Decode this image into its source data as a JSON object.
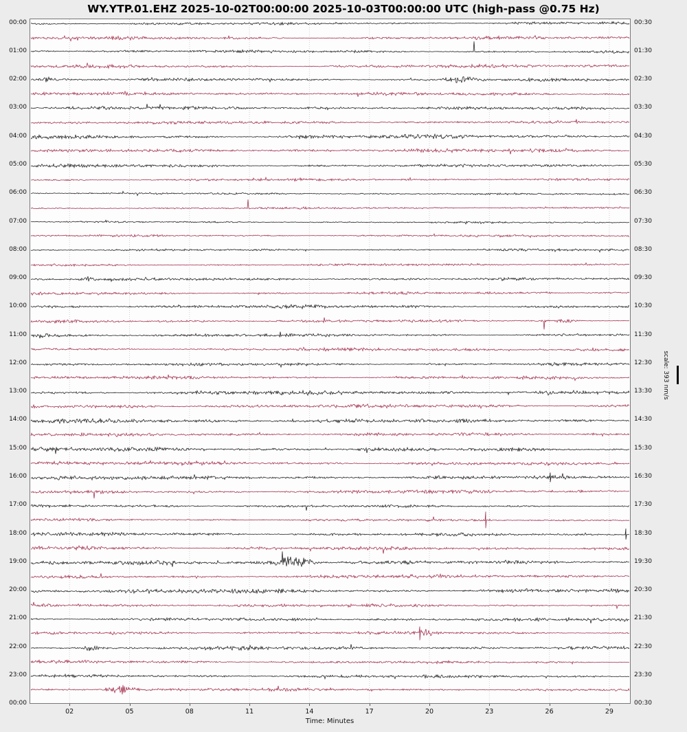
{
  "title": "WY.YTP.01.EHZ 2025-10-02T00:00:00 2025-10-03T00:00:00 UTC (high-pass @0.75 Hz)",
  "xlabel": "Time: Minutes",
  "scale_label": "scale: 393 nm/s",
  "chart_data": {
    "type": "line",
    "subtype": "helicorder-dayplot",
    "title": "WY.YTP.01.EHZ 2025-10-02T00:00:00 2025-10-03T00:00:00 UTC (high-pass @0.75 Hz)",
    "station": "WY.YTP.01.EHZ",
    "date_start": "2025-10-02T00:00:00",
    "date_end": "2025-10-03T00:00:00",
    "filter": "high-pass @0.75 Hz",
    "xlabel": "Time: Minutes",
    "x_range_minutes": [
      0,
      30
    ],
    "x_ticks": [
      "02",
      "05",
      "08",
      "11",
      "14",
      "17",
      "20",
      "23",
      "26",
      "29"
    ],
    "x_tick_minutes": [
      2,
      5,
      8,
      11,
      14,
      17,
      20,
      23,
      26,
      29
    ],
    "left_time_labels": [
      "00:00",
      "01:00",
      "02:00",
      "03:00",
      "04:00",
      "05:00",
      "06:00",
      "07:00",
      "08:00",
      "09:00",
      "10:00",
      "11:00",
      "12:00",
      "13:00",
      "14:00",
      "15:00",
      "16:00",
      "17:00",
      "18:00",
      "19:00",
      "20:00",
      "21:00",
      "22:00",
      "23:00",
      "00:00"
    ],
    "right_time_labels": [
      "00:30",
      "01:30",
      "02:30",
      "03:30",
      "04:30",
      "05:30",
      "06:30",
      "07:30",
      "08:30",
      "09:30",
      "10:30",
      "11:30",
      "12:30",
      "13:30",
      "14:30",
      "15:30",
      "16:30",
      "17:30",
      "18:30",
      "19:30",
      "20:30",
      "21:30",
      "22:30",
      "23:30",
      "00:30"
    ],
    "scale": {
      "label": "scale: 393 nm/s",
      "value": 393,
      "unit": "nm/s"
    },
    "grid": {
      "vertical_dashed": true,
      "color": "#cfcfcf"
    },
    "trace_colors": {
      "hour": "#1b1b1b",
      "half_hour": "#a12b49"
    },
    "rows": [
      {
        "start": "00:00",
        "end": "00:30",
        "color": "black",
        "amp": 2.2,
        "events": []
      },
      {
        "start": "00:30",
        "end": "01:00",
        "color": "red",
        "amp": 2.6,
        "events": []
      },
      {
        "start": "01:00",
        "end": "01:30",
        "color": "black",
        "amp": 2.2,
        "events": [
          {
            "kind": "spike-up",
            "min": 22.2,
            "amp": 15
          }
        ]
      },
      {
        "start": "01:30",
        "end": "02:00",
        "color": "red",
        "amp": 2.8,
        "events": []
      },
      {
        "start": "02:00",
        "end": "02:30",
        "color": "black",
        "amp": 2.5,
        "events": [
          {
            "kind": "burst",
            "min": 0.9,
            "dur": 0.5,
            "amp": 4
          },
          {
            "kind": "burst",
            "min": 21.6,
            "dur": 1.6,
            "amp": 6
          }
        ]
      },
      {
        "start": "02:30",
        "end": "03:00",
        "color": "red",
        "amp": 2.6,
        "events": []
      },
      {
        "start": "03:00",
        "end": "03:30",
        "color": "black",
        "amp": 2.6,
        "events": []
      },
      {
        "start": "03:30",
        "end": "04:00",
        "color": "red",
        "amp": 2.4,
        "events": []
      },
      {
        "start": "04:00",
        "end": "04:30",
        "color": "black",
        "amp": 3.4,
        "events": []
      },
      {
        "start": "04:30",
        "end": "05:00",
        "color": "red",
        "amp": 2.8,
        "events": []
      },
      {
        "start": "05:00",
        "end": "05:30",
        "color": "black",
        "amp": 2.6,
        "events": []
      },
      {
        "start": "05:30",
        "end": "06:00",
        "color": "red",
        "amp": 2.0,
        "events": []
      },
      {
        "start": "06:00",
        "end": "06:30",
        "color": "black",
        "amp": 1.5,
        "events": []
      },
      {
        "start": "06:30",
        "end": "07:00",
        "color": "red",
        "amp": 1.6,
        "events": [
          {
            "kind": "spike-up",
            "min": 10.9,
            "amp": 12
          }
        ]
      },
      {
        "start": "07:00",
        "end": "07:30",
        "color": "black",
        "amp": 1.3,
        "events": []
      },
      {
        "start": "07:30",
        "end": "08:00",
        "color": "red",
        "amp": 1.8,
        "events": []
      },
      {
        "start": "08:00",
        "end": "08:30",
        "color": "black",
        "amp": 1.8,
        "events": []
      },
      {
        "start": "08:30",
        "end": "09:00",
        "color": "red",
        "amp": 2.0,
        "events": []
      },
      {
        "start": "09:00",
        "end": "09:30",
        "color": "black",
        "amp": 2.1,
        "events": [
          {
            "kind": "burst",
            "min": 2.9,
            "dur": 0.6,
            "amp": 3.5
          }
        ]
      },
      {
        "start": "09:30",
        "end": "10:00",
        "color": "red",
        "amp": 2.2,
        "events": []
      },
      {
        "start": "10:00",
        "end": "10:30",
        "color": "black",
        "amp": 2.6,
        "events": []
      },
      {
        "start": "10:30",
        "end": "11:00",
        "color": "red",
        "amp": 2.2,
        "events": [
          {
            "kind": "spike-down",
            "min": 25.7,
            "amp": 12
          },
          {
            "kind": "burst",
            "min": 26.7,
            "dur": 1.0,
            "amp": 4.5
          }
        ]
      },
      {
        "start": "11:00",
        "end": "11:30",
        "color": "black",
        "amp": 2.6,
        "events": [
          {
            "kind": "burst",
            "min": 0.6,
            "dur": 0.4,
            "amp": 5
          }
        ]
      },
      {
        "start": "11:30",
        "end": "12:00",
        "color": "red",
        "amp": 2.5,
        "events": []
      },
      {
        "start": "12:00",
        "end": "12:30",
        "color": "black",
        "amp": 2.5,
        "events": []
      },
      {
        "start": "12:30",
        "end": "13:00",
        "color": "red",
        "amp": 2.5,
        "events": []
      },
      {
        "start": "13:00",
        "end": "13:30",
        "color": "black",
        "amp": 3.2,
        "events": []
      },
      {
        "start": "13:30",
        "end": "14:00",
        "color": "red",
        "amp": 2.8,
        "events": []
      },
      {
        "start": "14:00",
        "end": "14:30",
        "color": "black",
        "amp": 3.4,
        "events": []
      },
      {
        "start": "14:30",
        "end": "15:00",
        "color": "red",
        "amp": 2.8,
        "events": []
      },
      {
        "start": "15:00",
        "end": "15:30",
        "color": "black",
        "amp": 3.2,
        "events": []
      },
      {
        "start": "15:30",
        "end": "16:00",
        "color": "red",
        "amp": 3.0,
        "events": []
      },
      {
        "start": "16:00",
        "end": "16:30",
        "color": "black",
        "amp": 3.0,
        "events": [
          {
            "kind": "spike-both",
            "min": 26.0,
            "amp": 7
          }
        ]
      },
      {
        "start": "16:30",
        "end": "17:00",
        "color": "red",
        "amp": 2.8,
        "events": [
          {
            "kind": "spike-down",
            "min": 3.2,
            "amp": 10
          }
        ]
      },
      {
        "start": "17:00",
        "end": "17:30",
        "color": "black",
        "amp": 2.2,
        "events": [
          {
            "kind": "spike-down",
            "min": 13.8,
            "amp": 7
          }
        ]
      },
      {
        "start": "17:30",
        "end": "18:00",
        "color": "red",
        "amp": 2.2,
        "events": [
          {
            "kind": "spike-both",
            "min": 22.8,
            "amp": 12
          }
        ]
      },
      {
        "start": "18:00",
        "end": "18:30",
        "color": "black",
        "amp": 2.6,
        "events": [
          {
            "kind": "spike-both",
            "min": 29.8,
            "amp": 8
          }
        ]
      },
      {
        "start": "18:30",
        "end": "19:00",
        "color": "red",
        "amp": 2.8,
        "events": [
          {
            "kind": "burst",
            "min": 2.5,
            "dur": 2.0,
            "amp": 2
          }
        ]
      },
      {
        "start": "19:00",
        "end": "19:30",
        "color": "black",
        "amp": 3.0,
        "events": [
          {
            "kind": "spike-up",
            "min": 12.6,
            "amp": 16
          },
          {
            "kind": "burst",
            "min": 13.2,
            "dur": 1.8,
            "amp": 9
          },
          {
            "kind": "burst",
            "min": 17.5,
            "dur": 4.0,
            "amp": 1.5
          }
        ]
      },
      {
        "start": "19:30",
        "end": "20:00",
        "color": "red",
        "amp": 2.8,
        "events": []
      },
      {
        "start": "20:00",
        "end": "20:30",
        "color": "black",
        "amp": 3.5,
        "events": []
      },
      {
        "start": "20:30",
        "end": "21:00",
        "color": "red",
        "amp": 2.5,
        "events": []
      },
      {
        "start": "21:00",
        "end": "21:30",
        "color": "black",
        "amp": 2.5,
        "events": []
      },
      {
        "start": "21:30",
        "end": "22:00",
        "color": "red",
        "amp": 2.2,
        "events": [
          {
            "kind": "spike-both",
            "min": 19.5,
            "amp": 10
          },
          {
            "kind": "burst",
            "min": 19.9,
            "dur": 0.8,
            "amp": 4
          }
        ]
      },
      {
        "start": "22:00",
        "end": "22:30",
        "color": "black",
        "amp": 2.6,
        "events": [
          {
            "kind": "burst",
            "min": 3.0,
            "dur": 0.6,
            "amp": 5
          }
        ]
      },
      {
        "start": "22:30",
        "end": "23:00",
        "color": "red",
        "amp": 2.2,
        "events": []
      },
      {
        "start": "23:00",
        "end": "23:30",
        "color": "black",
        "amp": 2.3,
        "events": []
      },
      {
        "start": "23:30",
        "end": "00:00",
        "color": "red",
        "amp": 2.2,
        "events": [
          {
            "kind": "burst",
            "min": 4.5,
            "dur": 1.4,
            "amp": 8
          }
        ]
      }
    ]
  }
}
